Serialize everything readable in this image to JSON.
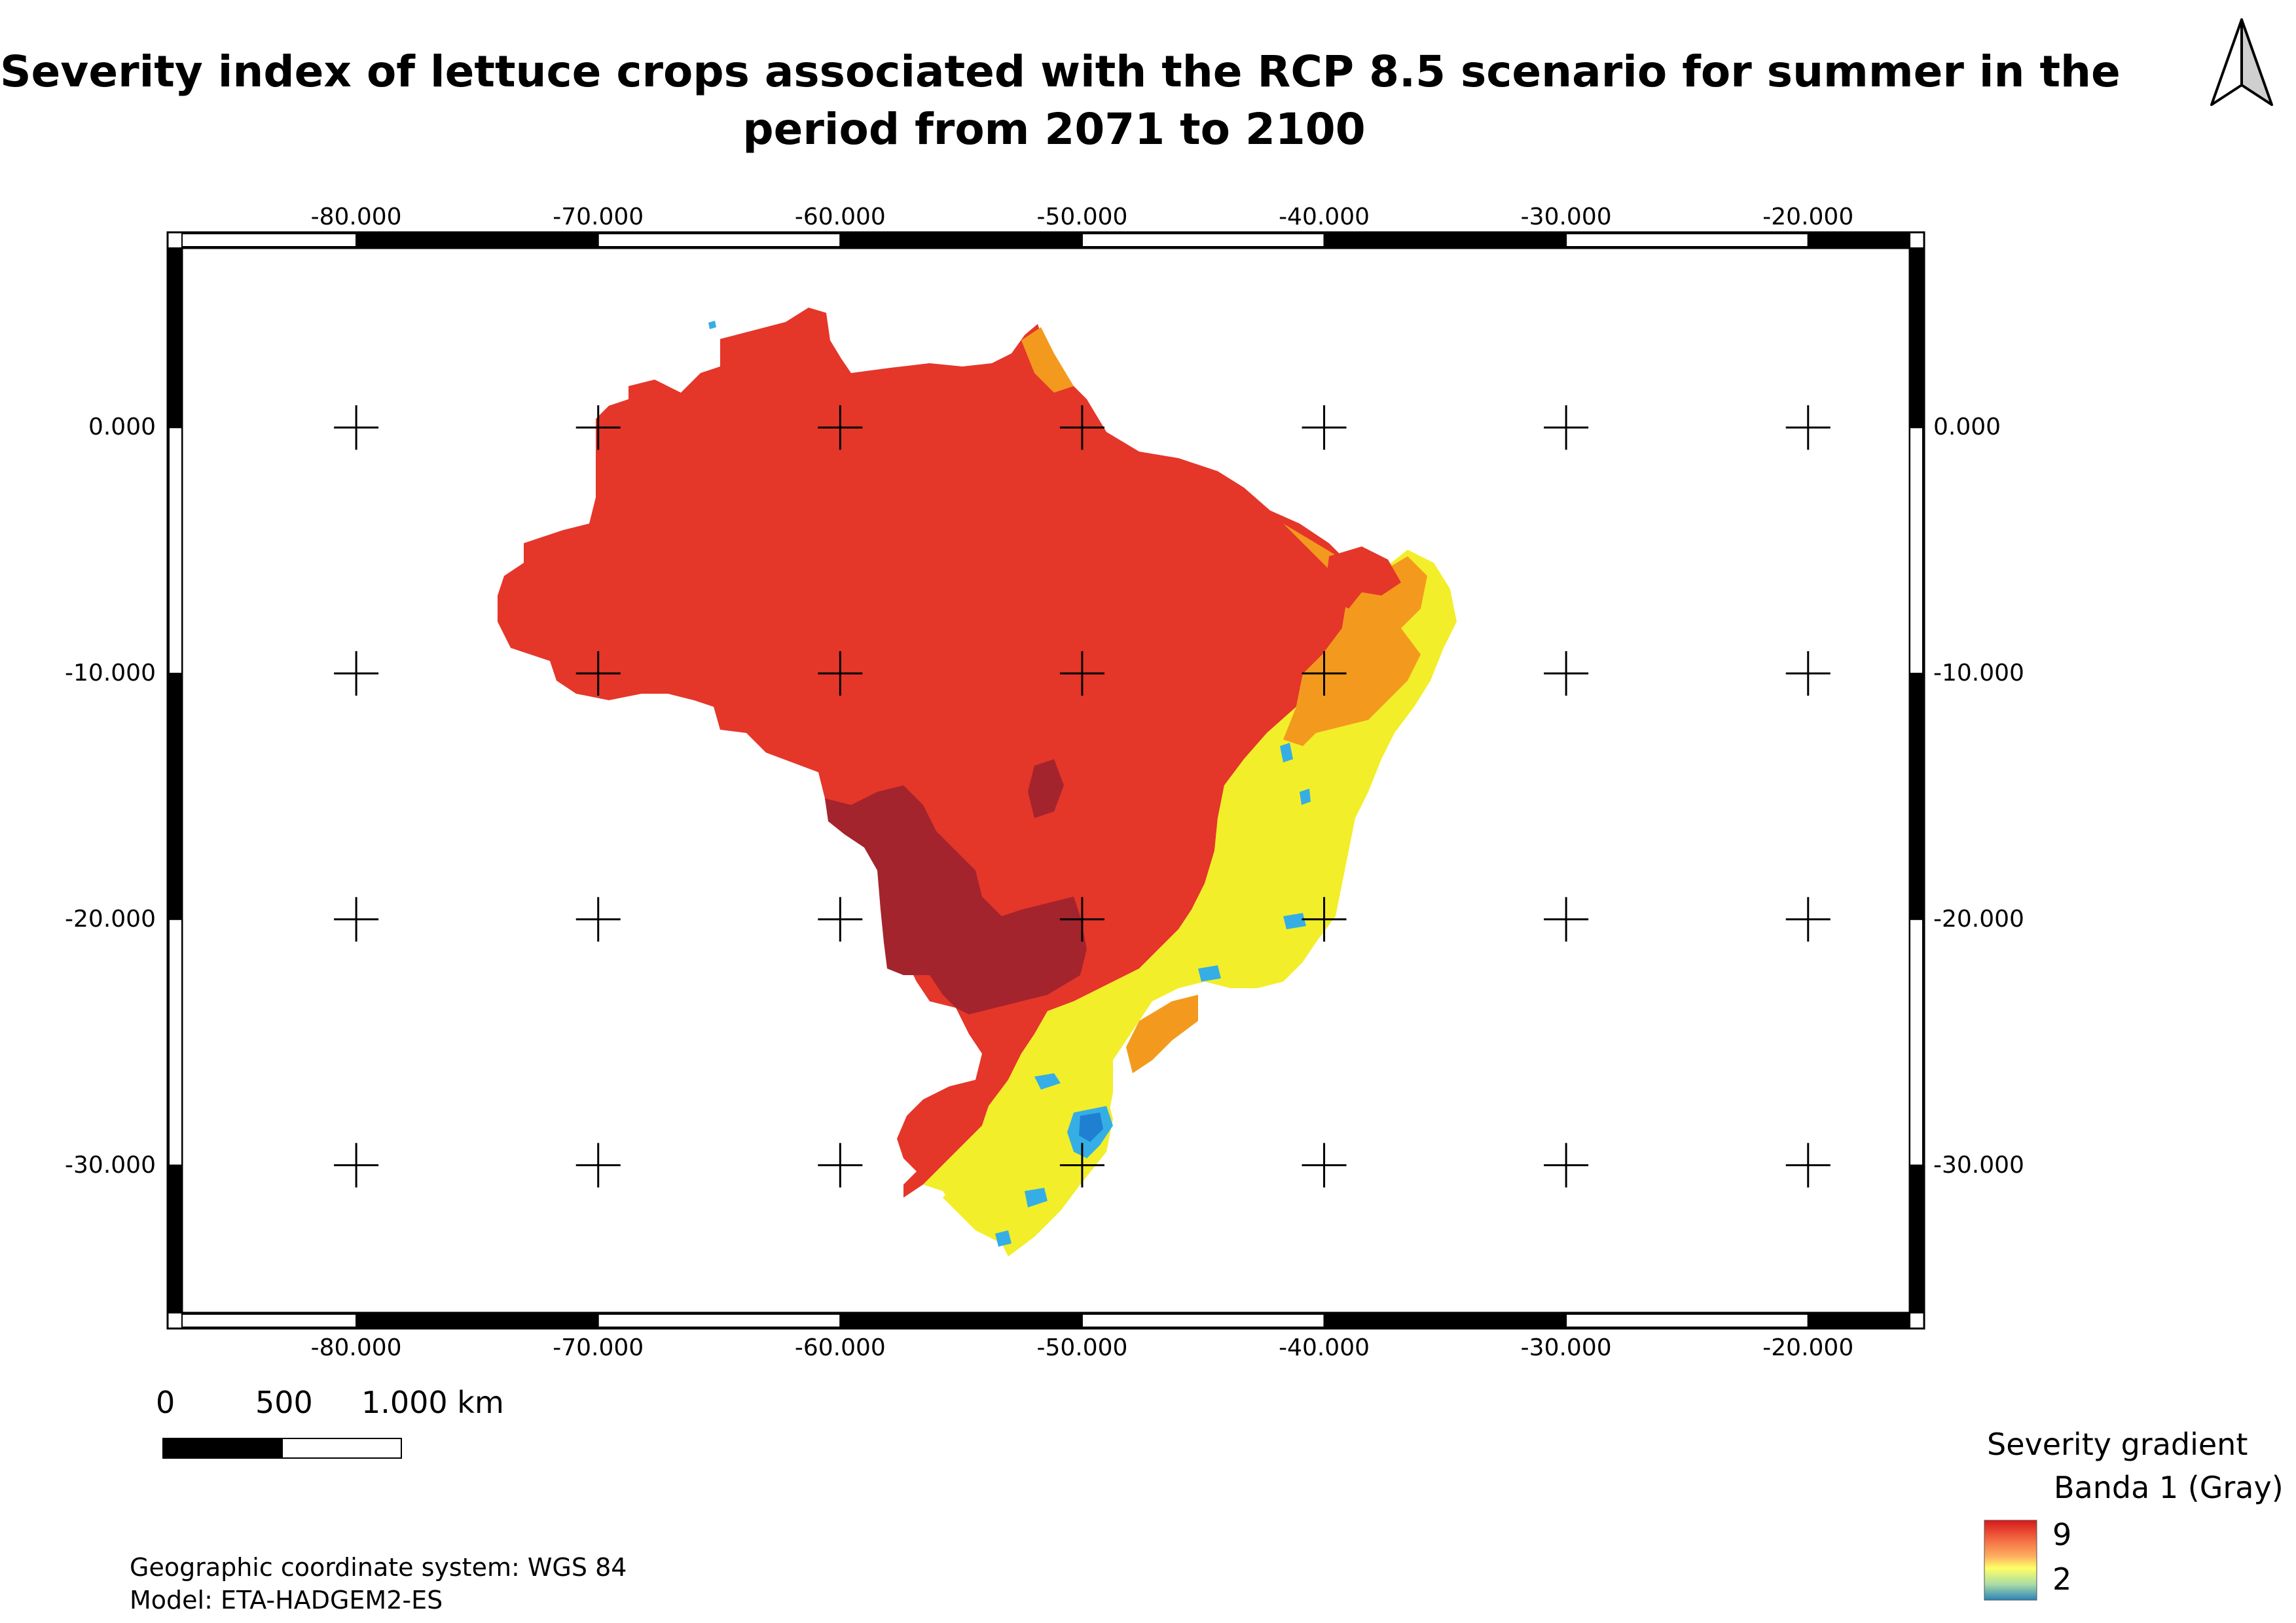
{
  "title": {
    "line1": "Severity index of lettuce crops associated with the RCP 8.5 scenario for summer in the",
    "line2": "period from 2071 to 2100"
  },
  "map": {
    "longitude_labels": [
      "-80.000",
      "-70.000",
      "-60.000",
      "-50.000",
      "-40.000",
      "-30.000",
      "-20.000"
    ],
    "latitude_labels": [
      "0.000",
      "-10.000",
      "-20.000",
      "-30.000"
    ],
    "longitudes": [
      -80,
      -70,
      -60,
      -50,
      -40,
      -30,
      -20
    ],
    "latitudes": [
      0,
      -10,
      -20,
      -30
    ],
    "extent": {
      "lon_min": -87.2,
      "lon_max": -15.8,
      "lat_max": 7.3,
      "lat_min": -36.0
    },
    "region": "Brazil",
    "colors": {
      "very_high": "#a3242c",
      "high": "#e5362a",
      "medium": "#f39a1e",
      "moderate": "#f7d31c",
      "low": "#f2ee2a",
      "very_low": "#35aee6",
      "min": "#1f7fd0"
    }
  },
  "north_arrow": {
    "icon": "north-arrow-icon"
  },
  "scale": {
    "labels": [
      "0",
      "500",
      "1.000 km"
    ]
  },
  "legend": {
    "title": "Severity gradient",
    "band": "Banda 1 (Gray)",
    "max_label": "9",
    "min_label": "2",
    "ramp_colors": [
      "#d7191c",
      "#f46d43",
      "#fdae61",
      "#fee08b",
      "#ffff66",
      "#abdda4",
      "#2b83ba"
    ]
  },
  "footer": {
    "crs": "Geographic coordinate system: WGS 84",
    "model": "Model: ETA-HADGEM2-ES"
  }
}
